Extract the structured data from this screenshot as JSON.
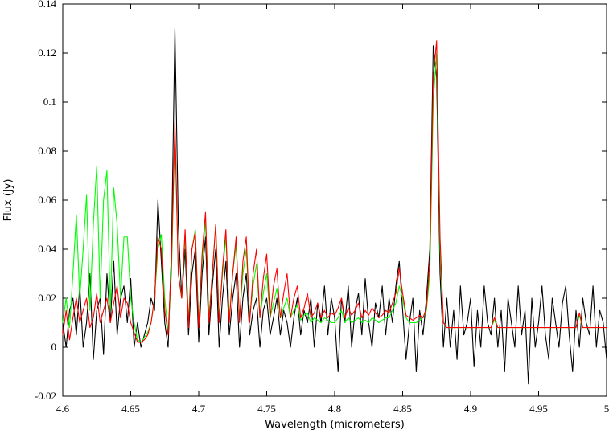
{
  "chart_data": {
    "type": "line",
    "xlabel": "Wavelength (micrometers)",
    "ylabel": "Flux (Jy)",
    "xlim": [
      4.6,
      5
    ],
    "xticks": [
      4.6,
      4.65,
      4.7,
      4.75,
      4.8,
      4.85,
      4.9,
      4.95,
      5
    ],
    "ylim": [
      -0.02,
      0.14
    ],
    "yticks": [
      -0.02,
      0,
      0.02,
      0.04,
      0.06,
      0.08,
      0.1,
      0.12,
      0.14
    ],
    "grid": false,
    "x": [
      4.6,
      4.6025,
      4.605,
      4.6075,
      4.61,
      4.6125,
      4.615,
      4.6175,
      4.62,
      4.6225,
      4.625,
      4.6275,
      4.63,
      4.6325,
      4.635,
      4.6375,
      4.64,
      4.6425,
      4.645,
      4.6475,
      4.65,
      4.6525,
      4.655,
      4.6575,
      4.66,
      4.6625,
      4.665,
      4.6675,
      4.67,
      4.6725,
      4.675,
      4.6775,
      4.68,
      4.6825,
      4.685,
      4.6875,
      4.69,
      4.6925,
      4.695,
      4.6975,
      4.7,
      4.7025,
      4.705,
      4.7075,
      4.71,
      4.7125,
      4.715,
      4.7175,
      4.72,
      4.7225,
      4.725,
      4.7275,
      4.73,
      4.7325,
      4.735,
      4.7375,
      4.74,
      4.7425,
      4.745,
      4.7475,
      4.75,
      4.7525,
      4.755,
      4.7575,
      4.76,
      4.7625,
      4.765,
      4.7675,
      4.77,
      4.7725,
      4.775,
      4.7775,
      4.78,
      4.7825,
      4.785,
      4.7875,
      4.79,
      4.7925,
      4.795,
      4.7975,
      4.8,
      4.8025,
      4.805,
      4.8075,
      4.81,
      4.8125,
      4.815,
      4.8175,
      4.82,
      4.8225,
      4.825,
      4.8275,
      4.83,
      4.8325,
      4.835,
      4.8375,
      4.84,
      4.8425,
      4.845,
      4.8475,
      4.85,
      4.8525,
      4.855,
      4.8575,
      4.86,
      4.8625,
      4.865,
      4.8675,
      4.87,
      4.8725,
      4.875,
      4.8775,
      4.88,
      4.8825,
      4.885,
      4.8875,
      4.89,
      4.8925,
      4.895,
      4.8975,
      4.9,
      4.9025,
      4.905,
      4.9075,
      4.91,
      4.9125,
      4.915,
      4.9175,
      4.92,
      4.9225,
      4.925,
      4.9275,
      4.93,
      4.9325,
      4.935,
      4.9375,
      4.94,
      4.9425,
      4.945,
      4.9475,
      4.95,
      4.9525,
      4.955,
      4.9575,
      4.96,
      4.9625,
      4.965,
      4.9675,
      4.97,
      4.9725,
      4.975,
      4.9775,
      4.98,
      4.9825,
      4.985,
      4.9875,
      4.99,
      4.9925,
      4.995,
      4.9975,
      5
    ],
    "series": [
      {
        "color": "#000000",
        "values": [
          0.01,
          0,
          0.015,
          0.02,
          0.005,
          0.025,
          0,
          0.01,
          0.03,
          -0.005,
          0.015,
          0.02,
          -0.003,
          0.03,
          0.01,
          0.035,
          0.005,
          0.02,
          0.025,
          0.01,
          0.028,
          0,
          0.01,
          0,
          0.005,
          0.01,
          0.02,
          0.015,
          0.06,
          0.035,
          0.01,
          0,
          0.04,
          0.13,
          0.05,
          0.02,
          0.04,
          0.005,
          0.03,
          0.04,
          0.002,
          0.03,
          0.045,
          0.005,
          0.025,
          0.04,
          0,
          0.02,
          0.035,
          0.005,
          0.02,
          0.03,
          0,
          0.02,
          0.03,
          0.005,
          0.015,
          0.02,
          0,
          0.015,
          0.02,
          0.005,
          0.012,
          0.02,
          0.005,
          0.015,
          0.01,
          0,
          0.012,
          0.02,
          0.005,
          0.015,
          0.01,
          0.02,
          0,
          0.018,
          0.01,
          0.025,
          0.005,
          0.02,
          0.012,
          -0.01,
          0.02,
          0.01,
          0.025,
          0,
          0.015,
          0.022,
          0.005,
          0.028,
          0.01,
          0,
          0.018,
          0.012,
          0.025,
          0.005,
          0.02,
          0.01,
          0.025,
          0.035,
          0.015,
          -0.005,
          0.01,
          0.02,
          -0.01,
          0.015,
          0.005,
          0.02,
          0.04,
          0.123,
          0.11,
          0.03,
          0,
          0.02,
          0,
          0.015,
          -0.005,
          0.025,
          0.005,
          0.01,
          0.02,
          -0.008,
          0.015,
          0,
          0.025,
          0.01,
          0.005,
          0.02,
          0,
          0.015,
          -0.01,
          0.02,
          0.01,
          0,
          0.025,
          0.005,
          0.015,
          -0.015,
          0.02,
          0,
          0.01,
          0.025,
          0.005,
          -0.005,
          0.02,
          0.01,
          0,
          0.018,
          0.025,
          0.005,
          -0.01,
          0.015,
          0,
          0.02,
          0.01,
          0.005,
          0.025,
          0,
          0.015,
          0.01,
          -0.005
        ]
      },
      {
        "color": "#00ff00",
        "values": [
          0.01,
          0.02,
          0.008,
          0.03,
          0.054,
          0.02,
          0.04,
          0.062,
          0.015,
          0.05,
          0.074,
          0.02,
          0.06,
          0.072,
          0.015,
          0.065,
          0.05,
          0.02,
          0.045,
          0.045,
          0.02,
          0.01,
          0.003,
          0.002,
          0.004,
          0.006,
          0.01,
          0.02,
          0.04,
          0.046,
          0.02,
          0.006,
          0.03,
          0.09,
          0.03,
          0.02,
          0.046,
          0.01,
          0.04,
          0.048,
          0.01,
          0.035,
          0.052,
          0.012,
          0.03,
          0.05,
          0.012,
          0.03,
          0.045,
          0.012,
          0.03,
          0.042,
          0.012,
          0.03,
          0.04,
          0.012,
          0.025,
          0.034,
          0.012,
          0.022,
          0.03,
          0.012,
          0.018,
          0.024,
          0.012,
          0.016,
          0.02,
          0.012,
          0.015,
          0.017,
          0.011,
          0.013,
          0.014,
          0.01,
          0.012,
          0.011,
          0.01,
          0.012,
          0.011,
          0.01,
          0.01,
          0.012,
          0.015,
          0.01,
          0.012,
          0.01,
          0.011,
          0.012,
          0.01,
          0.011,
          0.01,
          0.012,
          0.011,
          0.01,
          0.011,
          0.012,
          0.012,
          0.015,
          0.018,
          0.025,
          0.02,
          0.012,
          0.01,
          0.01,
          0.01,
          0.011,
          0.012,
          0.015,
          0.03,
          0.1,
          0.12,
          0.04,
          0.01,
          0.008,
          0.008,
          0.008,
          0.008,
          0.008,
          0.008,
          0.008,
          0.008,
          0.008,
          0.008,
          0.008,
          0.008,
          0.008,
          0.008,
          0.011,
          0.008,
          0.008,
          0.008,
          0.008,
          0.008,
          0.008,
          0.008,
          0.008,
          0.008,
          0.008,
          0.008,
          0.008,
          0.008,
          0.008,
          0.008,
          0.008,
          0.008,
          0.008,
          0.008,
          0.008,
          0.008,
          0.008,
          0.008,
          0.008,
          0.013,
          0.008,
          0.008,
          0.008,
          0.008,
          0.008,
          0.008,
          0.008,
          0.008
        ]
      },
      {
        "color": "#ff0000",
        "values": [
          0.005,
          0.015,
          0.003,
          0.012,
          0.02,
          0.01,
          0.015,
          0.02,
          0.008,
          0.012,
          0.022,
          0.01,
          0.015,
          0.02,
          0.01,
          0.018,
          0.025,
          0.012,
          0.02,
          0.018,
          0.01,
          0.006,
          0.002,
          0.002,
          0.003,
          0.005,
          0.01,
          0.02,
          0.045,
          0.04,
          0.015,
          0.005,
          0.035,
          0.092,
          0.03,
          0.02,
          0.048,
          0.008,
          0.04,
          0.047,
          0.008,
          0.038,
          0.055,
          0.01,
          0.03,
          0.05,
          0.01,
          0.032,
          0.048,
          0.01,
          0.03,
          0.045,
          0.01,
          0.035,
          0.045,
          0.01,
          0.03,
          0.04,
          0.012,
          0.028,
          0.038,
          0.012,
          0.025,
          0.032,
          0.012,
          0.022,
          0.03,
          0.012,
          0.02,
          0.025,
          0.012,
          0.016,
          0.022,
          0.012,
          0.014,
          0.018,
          0.012,
          0.015,
          0.012,
          0.014,
          0.013,
          0.016,
          0.02,
          0.012,
          0.016,
          0.013,
          0.015,
          0.018,
          0.012,
          0.015,
          0.013,
          0.016,
          0.014,
          0.012,
          0.013,
          0.015,
          0.014,
          0.018,
          0.022,
          0.032,
          0.022,
          0.013,
          0.012,
          0.011,
          0.012,
          0.013,
          0.012,
          0.016,
          0.035,
          0.11,
          0.125,
          0.045,
          0.01,
          0.008,
          0.008,
          0.008,
          0.008,
          0.008,
          0.008,
          0.008,
          0.008,
          0.008,
          0.008,
          0.008,
          0.008,
          0.008,
          0.008,
          0.012,
          0.008,
          0.008,
          0.008,
          0.008,
          0.008,
          0.008,
          0.008,
          0.008,
          0.008,
          0.008,
          0.008,
          0.008,
          0.008,
          0.008,
          0.008,
          0.008,
          0.008,
          0.008,
          0.008,
          0.008,
          0.008,
          0.008,
          0.008,
          0.008,
          0.014,
          0.008,
          0.008,
          0.008,
          0.008,
          0.008,
          0.008,
          0.008,
          0.008
        ]
      }
    ]
  }
}
